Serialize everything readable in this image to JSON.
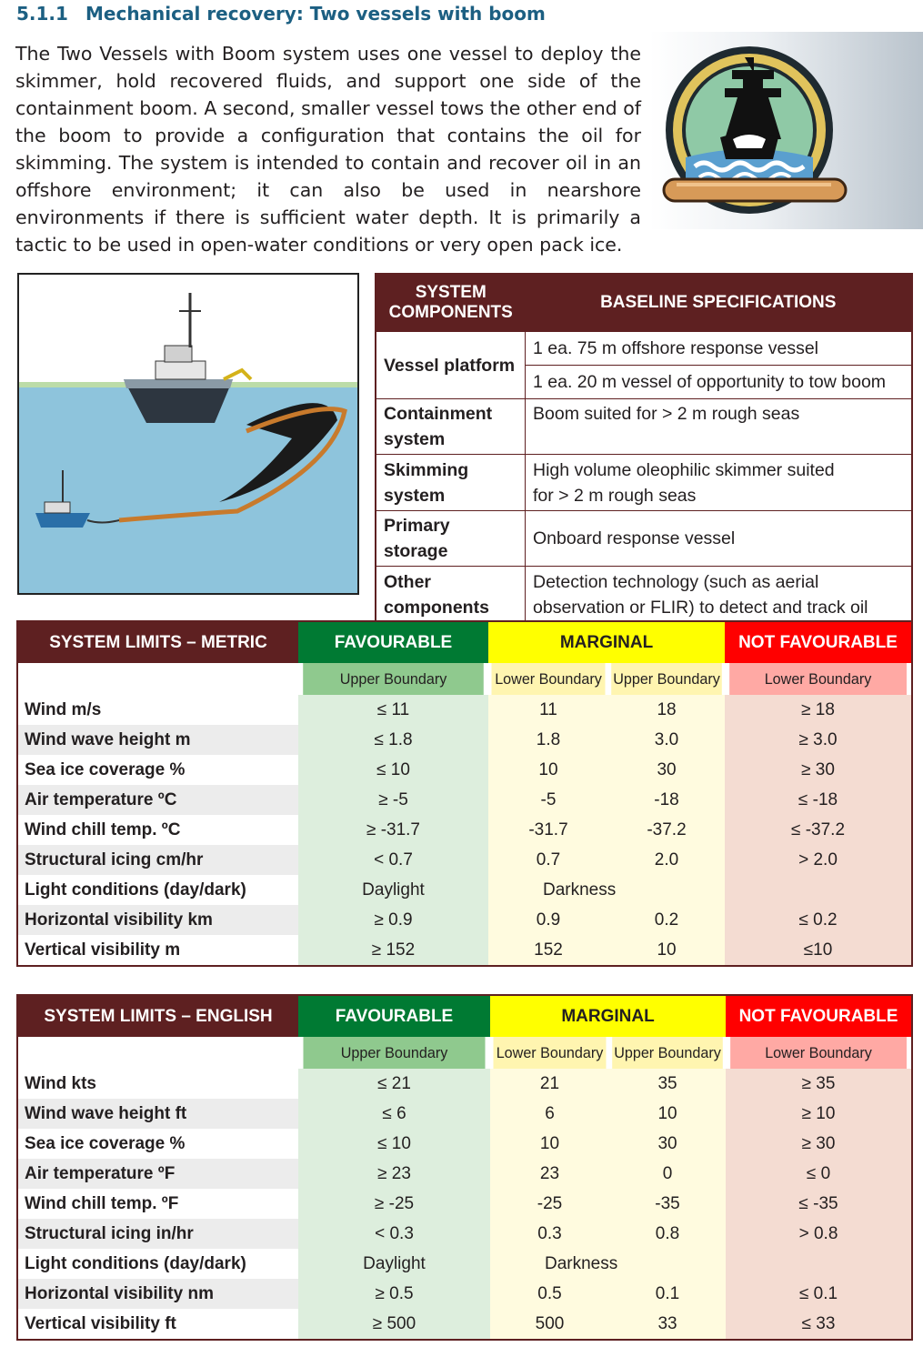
{
  "heading": {
    "number": "5.1.1",
    "title": "Mechanical recovery: Two vessels with boom"
  },
  "intro": "The Two Vessels with Boom system uses one vessel to deploy the skimmer, hold recovered fluids, and support one side of the containment boom. A second, smaller vessel tows the other end of the boom to provide a configuration that contains the oil for skimming. The system is intended to contain and recover oil in an offshore environment;  it can also be used in nearshore environments if there is sufficient water depth. It is primarily a tactic to be used in open-water conditions or very open pack ice.",
  "colors": {
    "heading": "#1c5f82",
    "maroon": "#5e2021",
    "favourable": "#007a33",
    "marginal": "#ffff00",
    "not_favourable": "#ff0000"
  },
  "icons": {
    "logo": "ship-boom-icon",
    "illustration": "two-vessels-boom-illustration"
  },
  "spec": {
    "col1": "SYSTEM COMPONENTS",
    "col2": "BASELINE SPECIFICATIONS",
    "rows": [
      {
        "label": "Vessel platform",
        "values": [
          "1 ea. 75 m offshore response vessel",
          "1 ea. 20 m vessel of opportunity to tow boom"
        ]
      },
      {
        "label": "Containment system",
        "values": [
          "Boom suited for > 2 m rough seas"
        ]
      },
      {
        "label": "Skimming system",
        "values": [
          "High volume oleophilic skimmer suited",
          "for > 2 m rough seas"
        ]
      },
      {
        "label": "Primary storage",
        "values": [
          "Onboard response vessel"
        ]
      },
      {
        "label": "Other components",
        "values": [
          "Detection technology (such as aerial",
          "observation or FLIR) to detect and track oil"
        ]
      }
    ]
  },
  "limits_metric": {
    "title": "SYSTEM LIMITS – METRIC",
    "favourable": "FAVOURABLE",
    "marginal": "MARGINAL",
    "not_favourable": "NOT FAVOURABLE",
    "upper": "Upper Boundary",
    "lower": "Lower Boundary",
    "rows": [
      {
        "p": "Wind m/s",
        "f": "≤ 11",
        "ml": "11",
        "mu": "18",
        "n": "≥ 18"
      },
      {
        "p": "Wind wave height m",
        "f": "≤ 1.8",
        "ml": "1.8",
        "mu": "3.0",
        "n": "≥ 3.0"
      },
      {
        "p": "Sea ice coverage %",
        "f": "≤ 10",
        "ml": "10",
        "mu": "30",
        "n": "≥ 30"
      },
      {
        "p": "Air temperature ºC",
        "f": "≥ -5",
        "ml": "-5",
        "mu": "-18",
        "n": "≤ -18"
      },
      {
        "p": "Wind chill temp. ºC",
        "f": "≥ -31.7",
        "ml": "-31.7",
        "mu": "-37.2",
        "n": "≤ -37.2"
      },
      {
        "p": "Structural icing cm/hr",
        "f": "< 0.7",
        "ml": "0.7",
        "mu": "2.0",
        "n": "> 2.0"
      },
      {
        "p": "Light conditions (day/dark)",
        "f": "Daylight",
        "ml": "Darkness",
        "mu": "",
        "n": ""
      },
      {
        "p": "Horizontal visibility km",
        "f": "≥ 0.9",
        "ml": "0.9",
        "mu": "0.2",
        "n": "≤ 0.2"
      },
      {
        "p": "Vertical visibility m",
        "f": "≥ 152",
        "ml": "152",
        "mu": "10",
        "n": "≤10"
      }
    ]
  },
  "limits_english": {
    "title": "SYSTEM LIMITS – ENGLISH",
    "favourable": "FAVOURABLE",
    "marginal": "MARGINAL",
    "not_favourable": "NOT FAVOURABLE",
    "upper": "Upper Boundary",
    "lower": "Lower Boundary",
    "rows": [
      {
        "p": "Wind kts",
        "f": "≤ 21",
        "ml": "21",
        "mu": "35",
        "n": "≥ 35"
      },
      {
        "p": "Wind wave height ft",
        "f": "≤ 6",
        "ml": "6",
        "mu": "10",
        "n": "≥ 10"
      },
      {
        "p": "Sea ice coverage %",
        "f": "≤ 10",
        "ml": "10",
        "mu": "30",
        "n": "≥ 30"
      },
      {
        "p": "Air temperature ºF",
        "f": "≥ 23",
        "ml": "23",
        "mu": "0",
        "n": "≤ 0"
      },
      {
        "p": "Wind chill temp. ºF",
        "f": "≥ -25",
        "ml": "-25",
        "mu": "-35",
        "n": "≤ -35"
      },
      {
        "p": "Structural icing in/hr",
        "f": "< 0.3",
        "ml": "0.3",
        "mu": "0.8",
        "n": "> 0.8"
      },
      {
        "p": "Light conditions (day/dark)",
        "f": "Daylight",
        "ml": "Darkness",
        "mu": "",
        "n": ""
      },
      {
        "p": "Horizontal visibility nm",
        "f": "≥ 0.5",
        "ml": "0.5",
        "mu": "0.1",
        "n": "≤ 0.1"
      },
      {
        "p": "Vertical visibility ft",
        "f": "≥ 500",
        "ml": "500",
        "mu": "33",
        "n": "≤ 33"
      }
    ]
  }
}
